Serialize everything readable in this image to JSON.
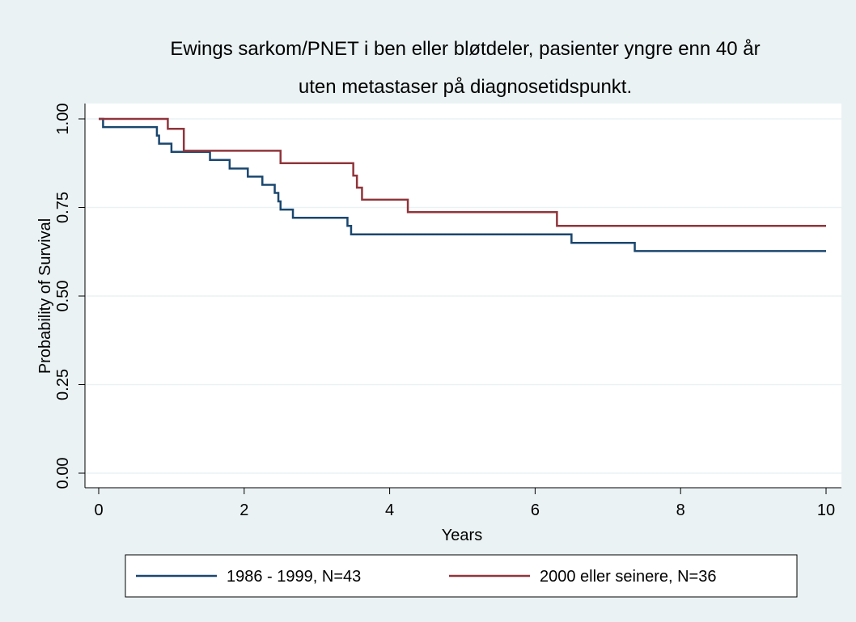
{
  "chart_data": {
    "type": "step",
    "title": [
      "Ewings sarkom/PNET i ben eller bløtdeler, pasienter yngre enn 40 år",
      "uten metastaser på diagnosetidspunkt."
    ],
    "x_label": "Years",
    "y_label": "Probability of Survival",
    "xlim": [
      0,
      10
    ],
    "xticks": [
      0,
      2,
      4,
      6,
      8,
      10
    ],
    "ylim": [
      0,
      1
    ],
    "yticks": [
      {
        "value": 0,
        "label": "0.00"
      },
      {
        "value": 0.25,
        "label": "0.25"
      },
      {
        "value": 0.5,
        "label": "0.50"
      },
      {
        "value": 0.75,
        "label": "0.75"
      },
      {
        "value": 1,
        "label": "1.00"
      }
    ],
    "grid": true,
    "series": [
      {
        "name": "1986 - 1999, N=43",
        "color": "#1a476f",
        "x": [
          0,
          0.06,
          0.8,
          0.83,
          1.0,
          1.53,
          1.8,
          2.05,
          2.25,
          2.42,
          2.47,
          2.5,
          2.67,
          3.42,
          3.47,
          6.5,
          7.37,
          10
        ],
        "values": [
          1,
          0.977,
          0.953,
          0.93,
          0.907,
          0.884,
          0.86,
          0.837,
          0.814,
          0.791,
          0.767,
          0.744,
          0.721,
          0.698,
          0.674,
          0.65,
          0.627,
          0.627
        ]
      },
      {
        "name": "2000 eller seinere, N=36",
        "color": "#90353b",
        "x": [
          0,
          0.95,
          1.17,
          2.5,
          3.5,
          3.55,
          3.62,
          4.25,
          6.3,
          10
        ],
        "values": [
          1,
          0.972,
          0.91,
          0.875,
          0.84,
          0.806,
          0.772,
          0.737,
          0.698,
          0.698
        ]
      }
    ]
  }
}
